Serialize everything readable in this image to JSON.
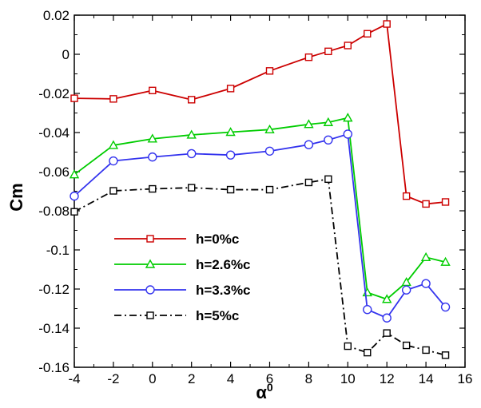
{
  "chart_data": {
    "type": "line",
    "title": "",
    "xlabel": "α",
    "xlabel_sup": "0",
    "ylabel": "Cm",
    "xlim": [
      -4,
      16
    ],
    "ylim": [
      -0.16,
      0.02
    ],
    "xticks": [
      -4,
      -2,
      0,
      2,
      4,
      6,
      8,
      10,
      12,
      14,
      16
    ],
    "yticks": [
      -0.16,
      -0.14,
      -0.12,
      -0.1,
      -0.08,
      -0.06,
      -0.04,
      -0.02,
      0,
      0.02
    ],
    "xtick_labels": [
      "-4",
      "-2",
      "0",
      "2",
      "4",
      "6",
      "8",
      "10",
      "12",
      "14",
      "16"
    ],
    "ytick_labels": [
      "-0.16",
      "-0.14",
      "-0.12",
      "-0.1",
      "-0.08",
      "-0.06",
      "-0.04",
      "-0.02",
      "0",
      "0.02"
    ],
    "grid": false,
    "legend_position": "lower-left",
    "series": [
      {
        "name": "h=0%c",
        "color": "#cc0000",
        "marker": "square",
        "dash": "solid",
        "x": [
          -4,
          -2,
          0,
          2,
          4,
          6,
          8,
          9,
          10,
          11,
          12,
          13,
          14,
          15
        ],
        "y": [
          -0.0225,
          -0.0228,
          -0.0185,
          -0.0232,
          -0.0175,
          -0.0085,
          -0.0015,
          0.0015,
          0.0045,
          0.0105,
          0.0155,
          -0.0725,
          -0.0765,
          -0.0755
        ]
      },
      {
        "name": "h=2.6%c",
        "color": "#00cc00",
        "marker": "triangle",
        "dash": "solid",
        "x": [
          -4,
          -2,
          0,
          2,
          4,
          6,
          8,
          9,
          10,
          11,
          12,
          13,
          14,
          15
        ],
        "y": [
          -0.0615,
          -0.0465,
          -0.0432,
          -0.0412,
          -0.0398,
          -0.0385,
          -0.0358,
          -0.0348,
          -0.0325,
          -0.1218,
          -0.1252,
          -0.1165,
          -0.1038,
          -0.1062
        ]
      },
      {
        "name": "h=3.3%c",
        "color": "#3333ee",
        "marker": "circle",
        "dash": "solid",
        "x": [
          -4,
          -2,
          0,
          2,
          4,
          6,
          8,
          9,
          10,
          11,
          12,
          13,
          14,
          15
        ],
        "y": [
          -0.0725,
          -0.0545,
          -0.0525,
          -0.0508,
          -0.0515,
          -0.0495,
          -0.0462,
          -0.0438,
          -0.0408,
          -0.1305,
          -0.1348,
          -0.1205,
          -0.1172,
          -0.1292
        ]
      },
      {
        "name": "h=5%c",
        "color": "#000000",
        "marker": "square",
        "dash": "dashdot",
        "x": [
          -4,
          -2,
          0,
          2,
          4,
          6,
          8,
          9,
          10,
          11,
          12,
          13,
          14,
          15
        ],
        "y": [
          -0.0805,
          -0.0698,
          -0.0688,
          -0.0682,
          -0.0692,
          -0.0692,
          -0.0655,
          -0.0638,
          -0.1492,
          -0.1525,
          -0.1425,
          -0.1488,
          -0.1512,
          -0.1538
        ]
      }
    ]
  }
}
